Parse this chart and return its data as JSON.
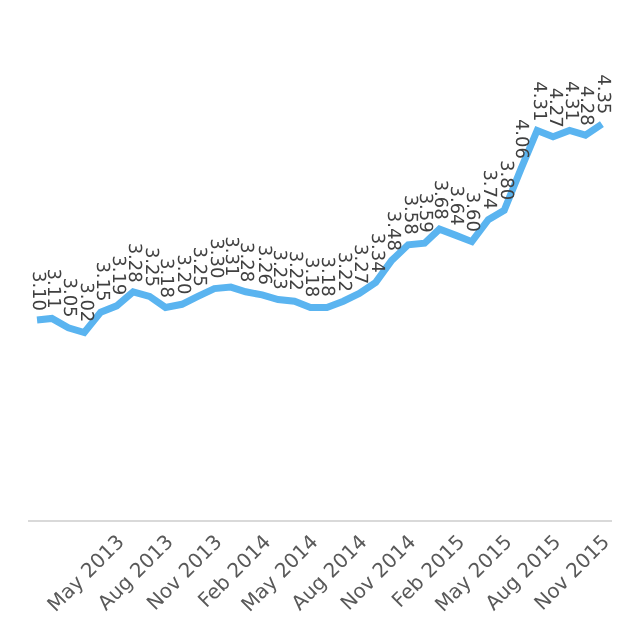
{
  "chart_data": {
    "type": "line",
    "x": [
      "2013-02",
      "2013-03",
      "2013-04",
      "2013-05",
      "2013-06",
      "2013-07",
      "2013-08",
      "2013-09",
      "2013-10",
      "2013-11",
      "2013-12",
      "2014-01",
      "2014-02",
      "2014-03",
      "2014-04",
      "2014-05",
      "2014-06",
      "2014-07",
      "2014-08",
      "2014-09",
      "2014-10",
      "2014-11",
      "2014-12",
      "2015-01",
      "2015-02",
      "2015-03",
      "2015-04",
      "2015-05",
      "2015-06",
      "2015-07",
      "2015-08",
      "2015-09",
      "2015-10",
      "2015-11",
      "2015-12",
      "2016-01"
    ],
    "xlim": [
      "2013-01-15",
      "2016-01-20"
    ],
    "xticks": [
      {
        "value": "2013-05",
        "label": "May 2013"
      },
      {
        "value": "2013-08",
        "label": "Aug 2013"
      },
      {
        "value": "2013-11",
        "label": "Nov 2013"
      },
      {
        "value": "2014-02",
        "label": "Feb 2014"
      },
      {
        "value": "2014-05",
        "label": "May 2014"
      },
      {
        "value": "2014-08",
        "label": "Aug 2014"
      },
      {
        "value": "2014-11",
        "label": "Nov 2014"
      },
      {
        "value": "2015-02",
        "label": "Feb 2015"
      },
      {
        "value": "2015-05",
        "label": "May 2015"
      },
      {
        "value": "2015-08",
        "label": "Aug 2015"
      },
      {
        "value": "2015-11",
        "label": "Nov 2015"
      }
    ],
    "series": [
      {
        "color": "#5ab4f0",
        "values": [
          3.1,
          3.11,
          3.05,
          3.02,
          3.15,
          3.19,
          3.28,
          3.25,
          3.18,
          3.2,
          3.25,
          3.3,
          3.31,
          3.28,
          3.26,
          3.23,
          3.22,
          3.18,
          3.18,
          3.22,
          3.27,
          3.34,
          3.48,
          3.58,
          3.59,
          3.68,
          3.64,
          3.6,
          3.74,
          3.8,
          4.06,
          4.31,
          4.27,
          4.31,
          4.28,
          4.35
        ],
        "value_labels": [
          "3.10",
          "3.11",
          "3.05",
          "3.02",
          "3.15",
          "3.19",
          "3.28",
          "3.25",
          "3.18",
          "3.20",
          "3.25",
          "3.30",
          "3.31",
          "3.28",
          "3.26",
          "3.23",
          "3.22",
          "3.18",
          "3.18",
          "3.22",
          "3.27",
          "3.34",
          "3.48",
          "3.58",
          "3.59",
          "3.68",
          "3.64",
          "3.60",
          "3.74",
          "3.80",
          "4.06",
          "4.31",
          "4.27",
          "4.31",
          "4.28",
          "4.35"
        ]
      }
    ],
    "grid": false,
    "marker": "none",
    "line_style": "solid"
  }
}
